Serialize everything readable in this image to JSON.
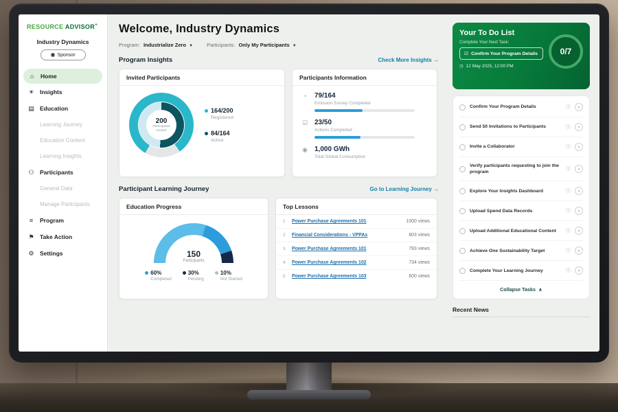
{
  "brand": {
    "name": "RESOURCE",
    "name2": "ADVISOR",
    "plus": "+"
  },
  "account": {
    "org": "Industry Dynamics",
    "role": "Sponsor"
  },
  "sidebar": {
    "items": [
      {
        "label": "Home",
        "glyph": "⌂",
        "icon": "home"
      },
      {
        "label": "Insights",
        "glyph": "☀",
        "icon": "insights"
      },
      {
        "label": "Education",
        "glyph": "▤",
        "icon": "education"
      },
      {
        "label": "Learning Journey"
      },
      {
        "label": "Education Content"
      },
      {
        "label": "Learning Insights"
      },
      {
        "label": "Participants",
        "glyph": "⚇",
        "icon": "participants"
      },
      {
        "label": "General Data"
      },
      {
        "label": "Manage Participants"
      },
      {
        "label": "Program",
        "glyph": "≡",
        "icon": "program"
      },
      {
        "label": "Take Action",
        "glyph": "⚑",
        "icon": "take-action"
      },
      {
        "label": "Settings",
        "glyph": "⚙",
        "icon": "settings"
      }
    ]
  },
  "header": {
    "title": "Welcome, Industry Dynamics",
    "filters": {
      "program_label": "Program:",
      "program_value": "Industrialize Zero",
      "participants_label": "Participants:",
      "participants_value": "Only My Participants",
      "chevron": "▼"
    }
  },
  "sections": {
    "program_insights": {
      "title": "Program Insights",
      "link": "Check More Insights",
      "arrow": "→"
    },
    "learning_journey": {
      "title": "Participant Learning Journey",
      "link": "Go to Learning Journey",
      "arrow": "→"
    }
  },
  "invited_card": {
    "title": "Invited Participants",
    "center_value": "200",
    "center_label": "Participants Invited",
    "legend": [
      {
        "value": "164/200",
        "label": "Registered"
      },
      {
        "value": "84/164",
        "label": "Active"
      }
    ]
  },
  "info_card": {
    "title": "Participants Information",
    "rows": [
      {
        "value": "79/164",
        "label": "Emission Survey Completed",
        "glyph": "◔",
        "icon": "emission-survey"
      },
      {
        "value": "23/50",
        "label": "Actions Completed",
        "glyph": "☑",
        "icon": "actions"
      },
      {
        "value": "1,000 GWh",
        "label": "Total Global Consumption",
        "glyph": "◉",
        "icon": "consumption"
      }
    ]
  },
  "education_card": {
    "title": "Education Progress",
    "center_value": "150",
    "center_label": "Participants",
    "legend": [
      {
        "value": "60%",
        "label": "Completed"
      },
      {
        "value": "30%",
        "label": "Pending"
      },
      {
        "value": "10%",
        "label": "Not Started"
      }
    ]
  },
  "lessons_card": {
    "title": "Top Lessons",
    "rows": [
      {
        "rank": "1",
        "title": "Power Purchase Agreements 101",
        "views": "1000 views"
      },
      {
        "rank": "2",
        "title": "Financial Considerations - VPPAs",
        "views": "803 views"
      },
      {
        "rank": "3",
        "title": "Power Purchase Agreements 101",
        "views": "793 views"
      },
      {
        "rank": "4",
        "title": "Power Purchase Agreements 102",
        "views": "734 views"
      },
      {
        "rank": "5",
        "title": "Power Purchase Agreements 103",
        "views": "600 views"
      }
    ]
  },
  "todo": {
    "title": "Your To Do List",
    "subtitle": "Complete Your Next Task:",
    "next_task": "Confirm Your Program Details",
    "next_task_check": "☑",
    "due": "12 May 2025, 12:00 PM",
    "clock": "◷",
    "progress": "0/7",
    "tasks": [
      {
        "label": "Confirm Your Program Details"
      },
      {
        "label": "Send 50 Invitations to Participants"
      },
      {
        "label": "Invite a Collaborator"
      },
      {
        "label": "Verify participants requesting to join the program"
      },
      {
        "label": "Explore Your Insights Dashboard"
      },
      {
        "label": "Upload Spend Data Records"
      },
      {
        "label": "Upload Additional Educational Content"
      },
      {
        "label": "Achieve One Sustainability Target"
      },
      {
        "label": "Complete Your Learning Journey"
      }
    ],
    "info_glyph": "ⓘ",
    "go_glyph": "›",
    "collapse": "Collapse Tasks",
    "collapse_glyph": "∧"
  },
  "news": {
    "title": "Recent News"
  },
  "colors": {
    "brand_green": "#0B7D3E",
    "hero_green": "#077A3A",
    "teal_link": "#0F7FA8",
    "cyan": "#2AB7C9",
    "dark_teal": "#0D5560",
    "blue": "#2D9CDB",
    "navy": "#16284A"
  },
  "chart_data": [
    {
      "type": "donut",
      "title": "Invited Participants",
      "center": {
        "value": 200,
        "label": "Participants Invited"
      },
      "rings": [
        {
          "name": "Registered",
          "value": 164,
          "total": 200,
          "pct": 82,
          "color": "#2AB7C9",
          "track": "#E4E6E8"
        },
        {
          "name": "Active",
          "value": 84,
          "total": 164,
          "pct": 51,
          "color": "#0D5560",
          "track": "#CFE9F2"
        }
      ],
      "legend_position": "right"
    },
    {
      "type": "bar",
      "title": "Participants Information",
      "bars": [
        {
          "label": "Emission Survey Completed",
          "value": 79,
          "total": 164,
          "pct": 48,
          "color": "#2D9CDB"
        },
        {
          "label": "Actions Completed",
          "value": 23,
          "total": 50,
          "pct": 46,
          "color": "#2D9CDB"
        }
      ],
      "stat": {
        "value": "1,000 GWh",
        "label": "Total Global Consumption"
      }
    },
    {
      "type": "gauge",
      "title": "Education Progress",
      "center": {
        "value": 150,
        "label": "Participants"
      },
      "segments": [
        {
          "label": "Completed",
          "pct": 60,
          "color": "#5BBDE8"
        },
        {
          "label": "Pending",
          "pct": 30,
          "color": "#2D9CDB"
        },
        {
          "label": "Not Started",
          "pct": 10,
          "color": "#16284A"
        }
      ],
      "legend_position": "bottom"
    },
    {
      "type": "table",
      "title": "Top Lessons",
      "categories": [
        "Power Purchase Agreements 101",
        "Financial Considerations - VPPAs",
        "Power Purchase Agreements 101",
        "Power Purchase Agreements 102",
        "Power Purchase Agreements 103"
      ],
      "values": [
        1000,
        803,
        793,
        734,
        600
      ],
      "ylabel": "views"
    }
  ]
}
